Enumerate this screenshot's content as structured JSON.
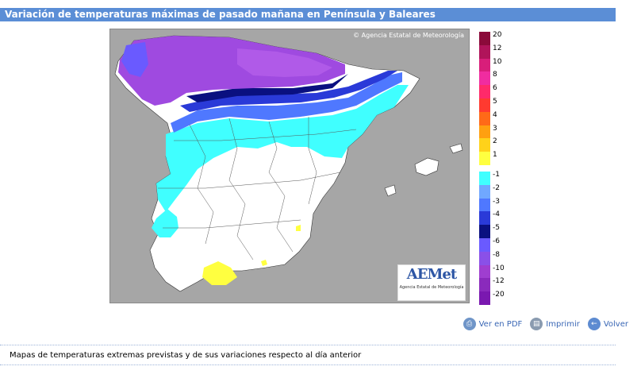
{
  "header": {
    "title": "Variación de temperaturas máximas de pasado mañana en Península y Baleares"
  },
  "map": {
    "copyright": "© Agencia Estatal de Meteorología",
    "logo_text": "AEMet",
    "logo_subtitle": "Agencia Estatal de Meteorología",
    "sea_color": "#a6a6a6"
  },
  "legend": {
    "items": [
      {
        "label": "20",
        "color": "#8b0a3a"
      },
      {
        "label": "12",
        "color": "#b0145a"
      },
      {
        "label": "10",
        "color": "#d81e7a"
      },
      {
        "label": "8",
        "color": "#f02ca0"
      },
      {
        "label": "6",
        "color": "#ff2a6a"
      },
      {
        "label": "5",
        "color": "#ff3a30"
      },
      {
        "label": "4",
        "color": "#ff6a18"
      },
      {
        "label": "3",
        "color": "#ffa010"
      },
      {
        "label": "2",
        "color": "#ffd21a"
      },
      {
        "label": "1",
        "color": "#ffff40"
      },
      {
        "label": "-1",
        "color": "#40ffff"
      },
      {
        "label": "-2",
        "color": "#70a8ff"
      },
      {
        "label": "-3",
        "color": "#4f78ff"
      },
      {
        "label": "-4",
        "color": "#2a3ad8"
      },
      {
        "label": "-5",
        "color": "#0a1080"
      },
      {
        "label": "-6",
        "color": "#6a5aff"
      },
      {
        "label": "-8",
        "color": "#8a50e8"
      },
      {
        "label": "-10",
        "color": "#9f3ed0"
      },
      {
        "label": "-12",
        "color": "#8a2abc"
      },
      {
        "label": "-20",
        "color": "#7a18b0"
      }
    ]
  },
  "actions": {
    "pdf": "Ver en PDF",
    "print": "Imprimir",
    "back": "Volver"
  },
  "footer": {
    "text": "Mapas de temperaturas extremas previstas y de sus variaciones respecto al día anterior"
  }
}
